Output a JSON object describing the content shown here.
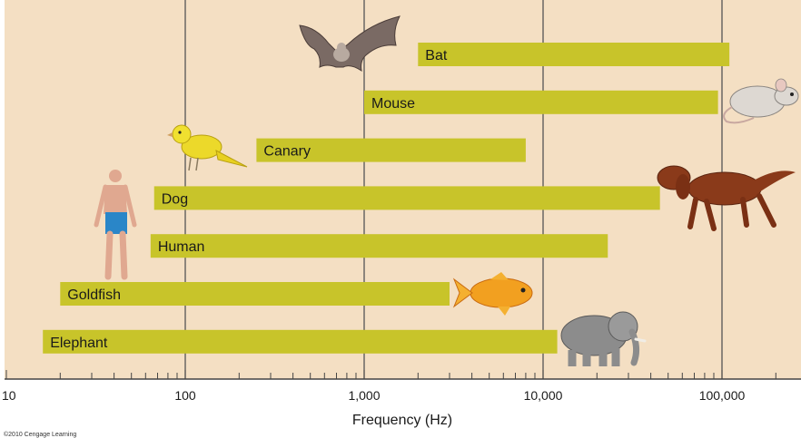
{
  "chart_data": {
    "type": "bar",
    "orientation": "horizontal",
    "x_scale": "log",
    "xlim": [
      10,
      280000
    ],
    "xlabel": "Frequency (Hz)",
    "x_ticks": [
      {
        "value": 10,
        "label": "10"
      },
      {
        "value": 100,
        "label": "100"
      },
      {
        "value": 1000,
        "label": "1,000"
      },
      {
        "value": 10000,
        "label": "10,000"
      },
      {
        "value": 100000,
        "label": "100,000"
      }
    ],
    "grid": true,
    "categories": [
      "Bat",
      "Mouse",
      "Canary",
      "Dog",
      "Human",
      "Goldfish",
      "Elephant"
    ],
    "ranges": [
      {
        "name": "Bat",
        "low": 2000,
        "high": 110000
      },
      {
        "name": "Mouse",
        "low": 1000,
        "high": 95000
      },
      {
        "name": "Canary",
        "low": 250,
        "high": 8000
      },
      {
        "name": "Dog",
        "low": 67,
        "high": 45000
      },
      {
        "name": "Human",
        "low": 64,
        "high": 23000
      },
      {
        "name": "Goldfish",
        "low": 20,
        "high": 3000
      },
      {
        "name": "Elephant",
        "low": 16,
        "high": 12000
      }
    ],
    "icons": [
      "bat-icon",
      "mouse-icon",
      "canary-icon",
      "dog-icon",
      "human-icon",
      "goldfish-icon",
      "elephant-icon"
    ],
    "credit": "©2010 Cengage Learning"
  },
  "colors": {
    "panel": "#f4dfc3",
    "bar": "#c8c42a",
    "grid": "#555555",
    "axis": "#444444"
  }
}
